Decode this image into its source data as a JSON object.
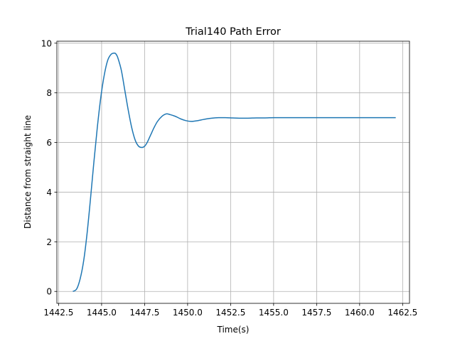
{
  "chart_data": {
    "type": "line",
    "title": "Trial140 Path Error",
    "xlabel": "Time(s)",
    "ylabel": "Distance from straight line",
    "xlim": [
      1442.4,
      1462.9
    ],
    "ylim": [
      -0.48,
      10.08
    ],
    "xticks": [
      1442.5,
      1445.0,
      1447.5,
      1450.0,
      1452.5,
      1455.0,
      1457.5,
      1460.0,
      1462.5
    ],
    "xtick_labels": [
      "1442.5",
      "1445.0",
      "1447.5",
      "1450.0",
      "1452.5",
      "1455.0",
      "1457.5",
      "1460.0",
      "1462.5"
    ],
    "yticks": [
      0,
      2,
      4,
      6,
      8,
      10
    ],
    "ytick_labels": [
      "0",
      "2",
      "4",
      "6",
      "8",
      "10"
    ],
    "grid": true,
    "line_color": "#1f77b4",
    "series": [
      {
        "x": [
          1443.33,
          1443.55,
          1443.75,
          1443.95,
          1444.15,
          1444.35,
          1444.55,
          1444.75,
          1444.95,
          1445.15,
          1445.35,
          1445.55,
          1445.75,
          1445.85,
          1445.95,
          1446.15,
          1446.35,
          1446.55,
          1446.75,
          1446.95,
          1447.15,
          1447.35,
          1447.5,
          1447.65,
          1447.85,
          1448.05,
          1448.25,
          1448.5,
          1448.75,
          1449.0,
          1449.3,
          1449.6,
          1449.9,
          1450.2,
          1450.5,
          1450.8,
          1451.1,
          1451.4,
          1451.8,
          1452.2,
          1452.6,
          1453.0,
          1453.5,
          1454.0,
          1454.5,
          1455.0,
          1455.5,
          1456.5,
          1458.0,
          1460.0,
          1462.1
        ],
        "y": [
          0.0,
          0.1,
          0.5,
          1.2,
          2.3,
          3.7,
          5.2,
          6.6,
          7.8,
          8.7,
          9.3,
          9.55,
          9.6,
          9.55,
          9.4,
          8.9,
          8.1,
          7.3,
          6.6,
          6.1,
          5.85,
          5.8,
          5.85,
          6.0,
          6.3,
          6.6,
          6.85,
          7.05,
          7.15,
          7.12,
          7.05,
          6.95,
          6.88,
          6.85,
          6.87,
          6.91,
          6.95,
          6.98,
          7.0,
          7.0,
          6.99,
          6.98,
          6.98,
          6.99,
          6.99,
          7.0,
          7.0,
          7.0,
          7.0,
          7.0,
          7.0
        ]
      }
    ]
  }
}
